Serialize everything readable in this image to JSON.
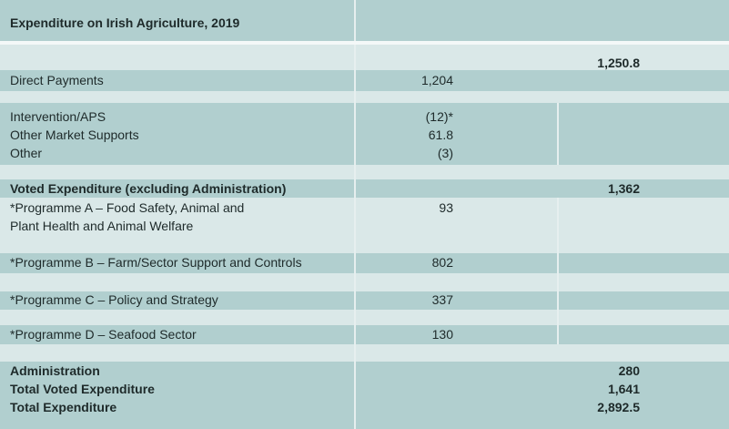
{
  "title": "Expenditure on Irish Agriculture, 2019",
  "eu_total": "1,250.8",
  "direct_payments": {
    "label": "Direct Payments",
    "value": "1,204"
  },
  "market": [
    {
      "label": "Intervention/APS",
      "value": "(12)*"
    },
    {
      "label": "Other Market Supports",
      "value": "61.8"
    },
    {
      "label": "Other",
      "value": "(3)"
    }
  ],
  "voted": {
    "label": "Voted Expenditure (excluding Administration)",
    "total": "1,362"
  },
  "programmes": [
    {
      "label_line1": "*Programme A – Food Safety, Animal and",
      "label_line2": "Plant Health and Animal Welfare",
      "value": "93"
    },
    {
      "label": "*Programme B – Farm/Sector Support and Controls",
      "value": "802"
    },
    {
      "label": "*Programme C – Policy and Strategy",
      "value": "337"
    },
    {
      "label": "*Programme D – Seafood Sector",
      "value": "130"
    }
  ],
  "totals": [
    {
      "label": "Administration",
      "value": "280"
    },
    {
      "label": "Total Voted Expenditure",
      "value": "1,641"
    },
    {
      "label": "Total  Expenditure",
      "value": "2,892.5"
    }
  ],
  "colors": {
    "dark_band": "#b1cfcf",
    "light_band": "#dae8e8"
  }
}
